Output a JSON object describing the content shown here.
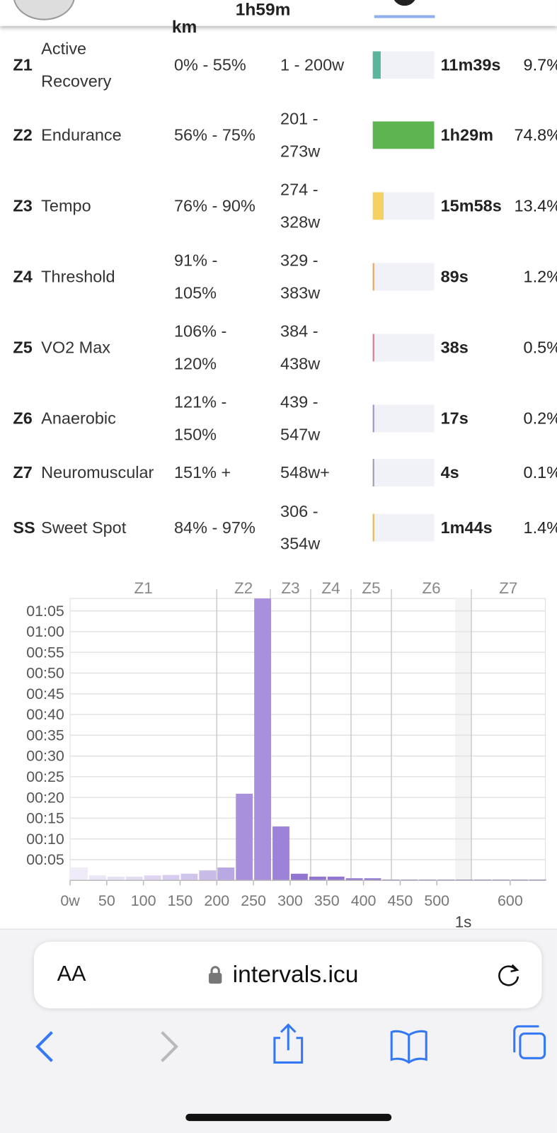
{
  "header": {
    "distance_unit": "km",
    "duration": "1h59m"
  },
  "zones": [
    {
      "id": "Z1",
      "name": "Active Recovery",
      "percent_ftp": "0% - 55%",
      "watts": "1 - 200w",
      "color": "#5bb59a",
      "time": "11m39s",
      "share": {
        "value": 9.7,
        "label": "9.7%"
      }
    },
    {
      "id": "Z2",
      "name": "Endurance",
      "percent_ftp": "56% - 75%",
      "watts": "201 - 273w",
      "color": "#5db451",
      "time": "1h29m",
      "share": {
        "value": 74.8,
        "label": "74.8%"
      }
    },
    {
      "id": "Z3",
      "name": "Tempo",
      "percent_ftp": "76% - 90%",
      "watts": "274 - 328w",
      "color": "#f5d162",
      "time": "15m58s",
      "share": {
        "value": 13.4,
        "label": "13.4%"
      }
    },
    {
      "id": "Z4",
      "name": "Threshold",
      "percent_ftp": "91% - 105%",
      "watts": "329 - 383w",
      "color": "#f0a057",
      "time": "89s",
      "share": {
        "value": 1.2,
        "label": "1.2%"
      }
    },
    {
      "id": "Z5",
      "name": "VO2 Max",
      "percent_ftp": "106% - 120%",
      "watts": "384 - 438w",
      "color": "#e07585",
      "time": "38s",
      "share": {
        "value": 0.5,
        "label": "0.5%"
      }
    },
    {
      "id": "Z6",
      "name": "Anaerobic",
      "percent_ftp": "121% - 150%",
      "watts": "439 - 547w",
      "color": "#9c8ed6",
      "time": "17s",
      "share": {
        "value": 0.2,
        "label": "0.2%"
      }
    },
    {
      "id": "Z7",
      "name": "Neuromuscular",
      "percent_ftp": "151% +",
      "watts": "548w+",
      "color": "#9a9ab0",
      "time": "4s",
      "share": {
        "value": 0.1,
        "label": "0.1%"
      }
    },
    {
      "id": "SS",
      "name": "Sweet Spot",
      "percent_ftp": "84% - 97%",
      "watts": "306 - 354w",
      "color": "#f0b446",
      "time": "1m44s",
      "share": {
        "value": 1.4,
        "label": "1.4%"
      }
    }
  ],
  "chart_data": {
    "type": "histogram",
    "bins": [
      0,
      25,
      50,
      75,
      100,
      125,
      150,
      175,
      200,
      225,
      250,
      275,
      300,
      325,
      350,
      375,
      400,
      425,
      450,
      475,
      500,
      525,
      550,
      575,
      600,
      625,
      650
    ],
    "values": [
      3.1,
      1.2,
      0.9,
      0.9,
      1.2,
      1.3,
      1.6,
      2.4,
      3.1,
      20.9,
      68,
      13.0,
      1.6,
      0.9,
      0.9,
      0.5,
      0.5,
      0.2,
      0.2,
      0.2,
      0.2,
      0.2,
      0.2,
      0.2,
      0.2,
      0.2
    ],
    "colors": [
      "#efebf9",
      "#ebe6f7",
      "#e7e1f5",
      "#e3dcf3",
      "#ddd5f1",
      "#d7cdee",
      "#d0c5eb",
      "#c8bbe8",
      "#b9a9e3",
      "#a890dd",
      "#a890dd",
      "#9d83d8",
      "#9076d0",
      "#9076d0",
      "#9076d0",
      "#9076d0",
      "#9076d0",
      "#9076d0",
      "#9076d0",
      "#9076d0",
      "#9076d0",
      "#9076d0",
      "#9076d0",
      "#9076d0",
      "#9076d0",
      "#9076d0"
    ],
    "xlim": [
      0,
      648
    ],
    "ylim": [
      0,
      68
    ],
    "xticks": [
      {
        "value": 0,
        "label": "0w"
      },
      50,
      100,
      150,
      200,
      250,
      300,
      350,
      400,
      450,
      500,
      600
    ],
    "yticks": [
      {
        "value": 5,
        "label": "00:05"
      },
      {
        "value": 10,
        "label": "00:10"
      },
      {
        "value": 15,
        "label": "00:15"
      },
      {
        "value": 20,
        "label": "00:20"
      },
      {
        "value": 25,
        "label": "00:25"
      },
      {
        "value": 30,
        "label": "00:30"
      },
      {
        "value": 35,
        "label": "00:35"
      },
      {
        "value": 40,
        "label": "00:40"
      },
      {
        "value": 45,
        "label": "00:45"
      },
      {
        "value": 50,
        "label": "00:50"
      },
      {
        "value": 55,
        "label": "00:55"
      },
      {
        "value": 60,
        "label": "01:00"
      },
      {
        "value": 65,
        "label": "01:05"
      }
    ],
    "zone_labels": [
      "Z1",
      "Z2",
      "Z3",
      "Z4",
      "Z5",
      "Z6",
      "Z7"
    ],
    "zone_bounds": [
      200,
      273,
      328,
      383,
      438,
      547
    ],
    "hover": {
      "label": "1s",
      "x": [
        525,
        547
      ]
    },
    "grid": true
  },
  "browser": {
    "text_size": "AA",
    "url": "intervals.icu"
  }
}
